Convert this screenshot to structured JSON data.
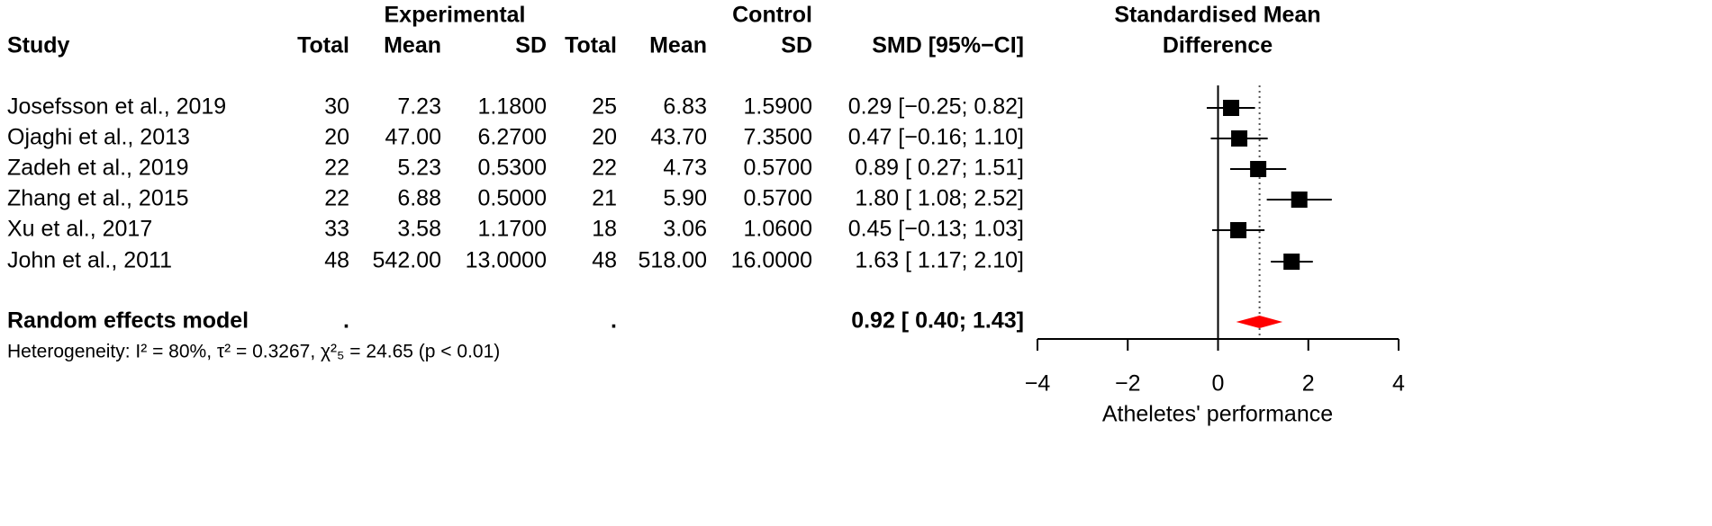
{
  "chart_data": {
    "type": "forest",
    "group_headers": [
      "Experimental",
      "Control"
    ],
    "column_headers": [
      "Study",
      "Total",
      "Mean",
      "SD",
      "Total",
      "Mean",
      "SD",
      "SMD [95%−CI]"
    ],
    "plot_title": [
      "Standardised Mean",
      "Difference"
    ],
    "studies": [
      {
        "cells": [
          "Josefsson et al., 2019",
          "30",
          "7.23",
          "1.1800",
          "25",
          "6.83",
          "1.5900"
        ],
        "smd": 0.29,
        "lower": -0.25,
        "upper": 0.82,
        "smd_label": "0.29 [−0.25; 0.82]"
      },
      {
        "cells": [
          "Ojaghi et al., 2013",
          "20",
          "47.00",
          "6.2700",
          "20",
          "43.70",
          "7.3500"
        ],
        "smd": 0.47,
        "lower": -0.16,
        "upper": 1.1,
        "smd_label": "0.47 [−0.16; 1.10]"
      },
      {
        "cells": [
          "Zadeh et al., 2019",
          "22",
          "5.23",
          "0.5300",
          "22",
          "4.73",
          "0.5700"
        ],
        "smd": 0.89,
        "lower": 0.27,
        "upper": 1.51,
        "smd_label": "0.89 [ 0.27; 1.51]"
      },
      {
        "cells": [
          "Zhang et al., 2015",
          "22",
          "6.88",
          "0.5000",
          "21",
          "5.90",
          "0.5700"
        ],
        "smd": 1.8,
        "lower": 1.08,
        "upper": 2.52,
        "smd_label": "1.80 [ 1.08; 2.52]"
      },
      {
        "cells": [
          "Xu et al., 2017",
          "33",
          "3.58",
          "1.1700",
          "18",
          "3.06",
          "1.0600"
        ],
        "smd": 0.45,
        "lower": -0.13,
        "upper": 1.03,
        "smd_label": "0.45 [−0.13; 1.03]"
      },
      {
        "cells": [
          "John et al., 2011",
          "48",
          "542.00",
          "13.0000",
          "48",
          "518.00",
          "16.0000"
        ],
        "smd": 1.63,
        "lower": 1.17,
        "upper": 2.1,
        "smd_label": "1.63 [ 1.17; 2.10]"
      }
    ],
    "pooled": {
      "name": "Random effects model",
      "exp_total": ".",
      "ctrl_total": ".",
      "smd": 0.92,
      "lower": 0.4,
      "upper": 1.43,
      "smd_label": "0.92 [ 0.40; 1.43]"
    },
    "heterogeneity": "Heterogeneity: I² = 80%, τ² = 0.3267, χ²₅ = 24.65 (p < 0.01)",
    "xlabel": "Atheletes' performance",
    "xlim": [
      -4,
      4
    ],
    "xticks": [
      {
        "value": -4,
        "label": "−4"
      },
      {
        "value": -2,
        "label": "−2"
      },
      0,
      2,
      4
    ],
    "reference_line": 0,
    "square_color": "#000000",
    "diamond_color": "#ff0000"
  }
}
